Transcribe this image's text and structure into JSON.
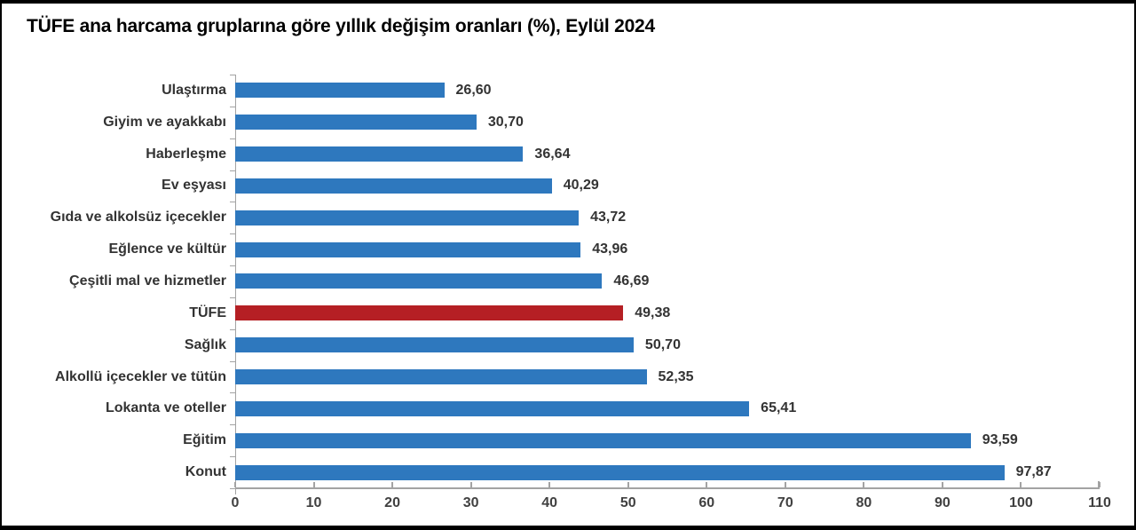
{
  "title": "TÜFE ana harcama gruplarına göre yıllık değişim oranları (%), Eylül 2024",
  "chart_data": {
    "type": "bar",
    "orientation": "horizontal",
    "title": "TÜFE ana harcama gruplarına göre yıllık değişim oranları (%), Eylül 2024",
    "categories": [
      "Ulaştırma",
      "Giyim ve ayakkabı",
      "Haberleşme",
      "Ev eşyası",
      "Gıda ve alkolsüz içecekler",
      "Eğlence ve kültür",
      "Çeşitli mal ve hizmetler",
      "TÜFE",
      "Sağlık",
      "Alkollü içecekler ve tütün",
      "Lokanta ve oteller",
      "Eğitim",
      "Konut"
    ],
    "values": [
      26.6,
      30.7,
      36.64,
      40.29,
      43.72,
      43.96,
      46.69,
      49.38,
      50.7,
      52.35,
      65.41,
      93.59,
      97.87
    ],
    "value_labels": [
      "26,60",
      "30,70",
      "36,64",
      "40,29",
      "43,72",
      "43,96",
      "46,69",
      "49,38",
      "50,70",
      "52,35",
      "65,41",
      "93,59",
      "97,87"
    ],
    "highlight_category": "TÜFE",
    "highlight_index": 7,
    "xlabel": "",
    "ylabel": "",
    "xlim": [
      0,
      110
    ],
    "x_ticks": [
      0,
      10,
      20,
      30,
      40,
      50,
      60,
      70,
      80,
      90,
      100,
      110
    ],
    "grid": false,
    "legend": null,
    "colors": {
      "bar": "#2E78BE",
      "highlight_bar": "#B51F24",
      "axis_line": "#A3A3A3",
      "label_text": "#333333",
      "tick_text": "#404040"
    }
  }
}
